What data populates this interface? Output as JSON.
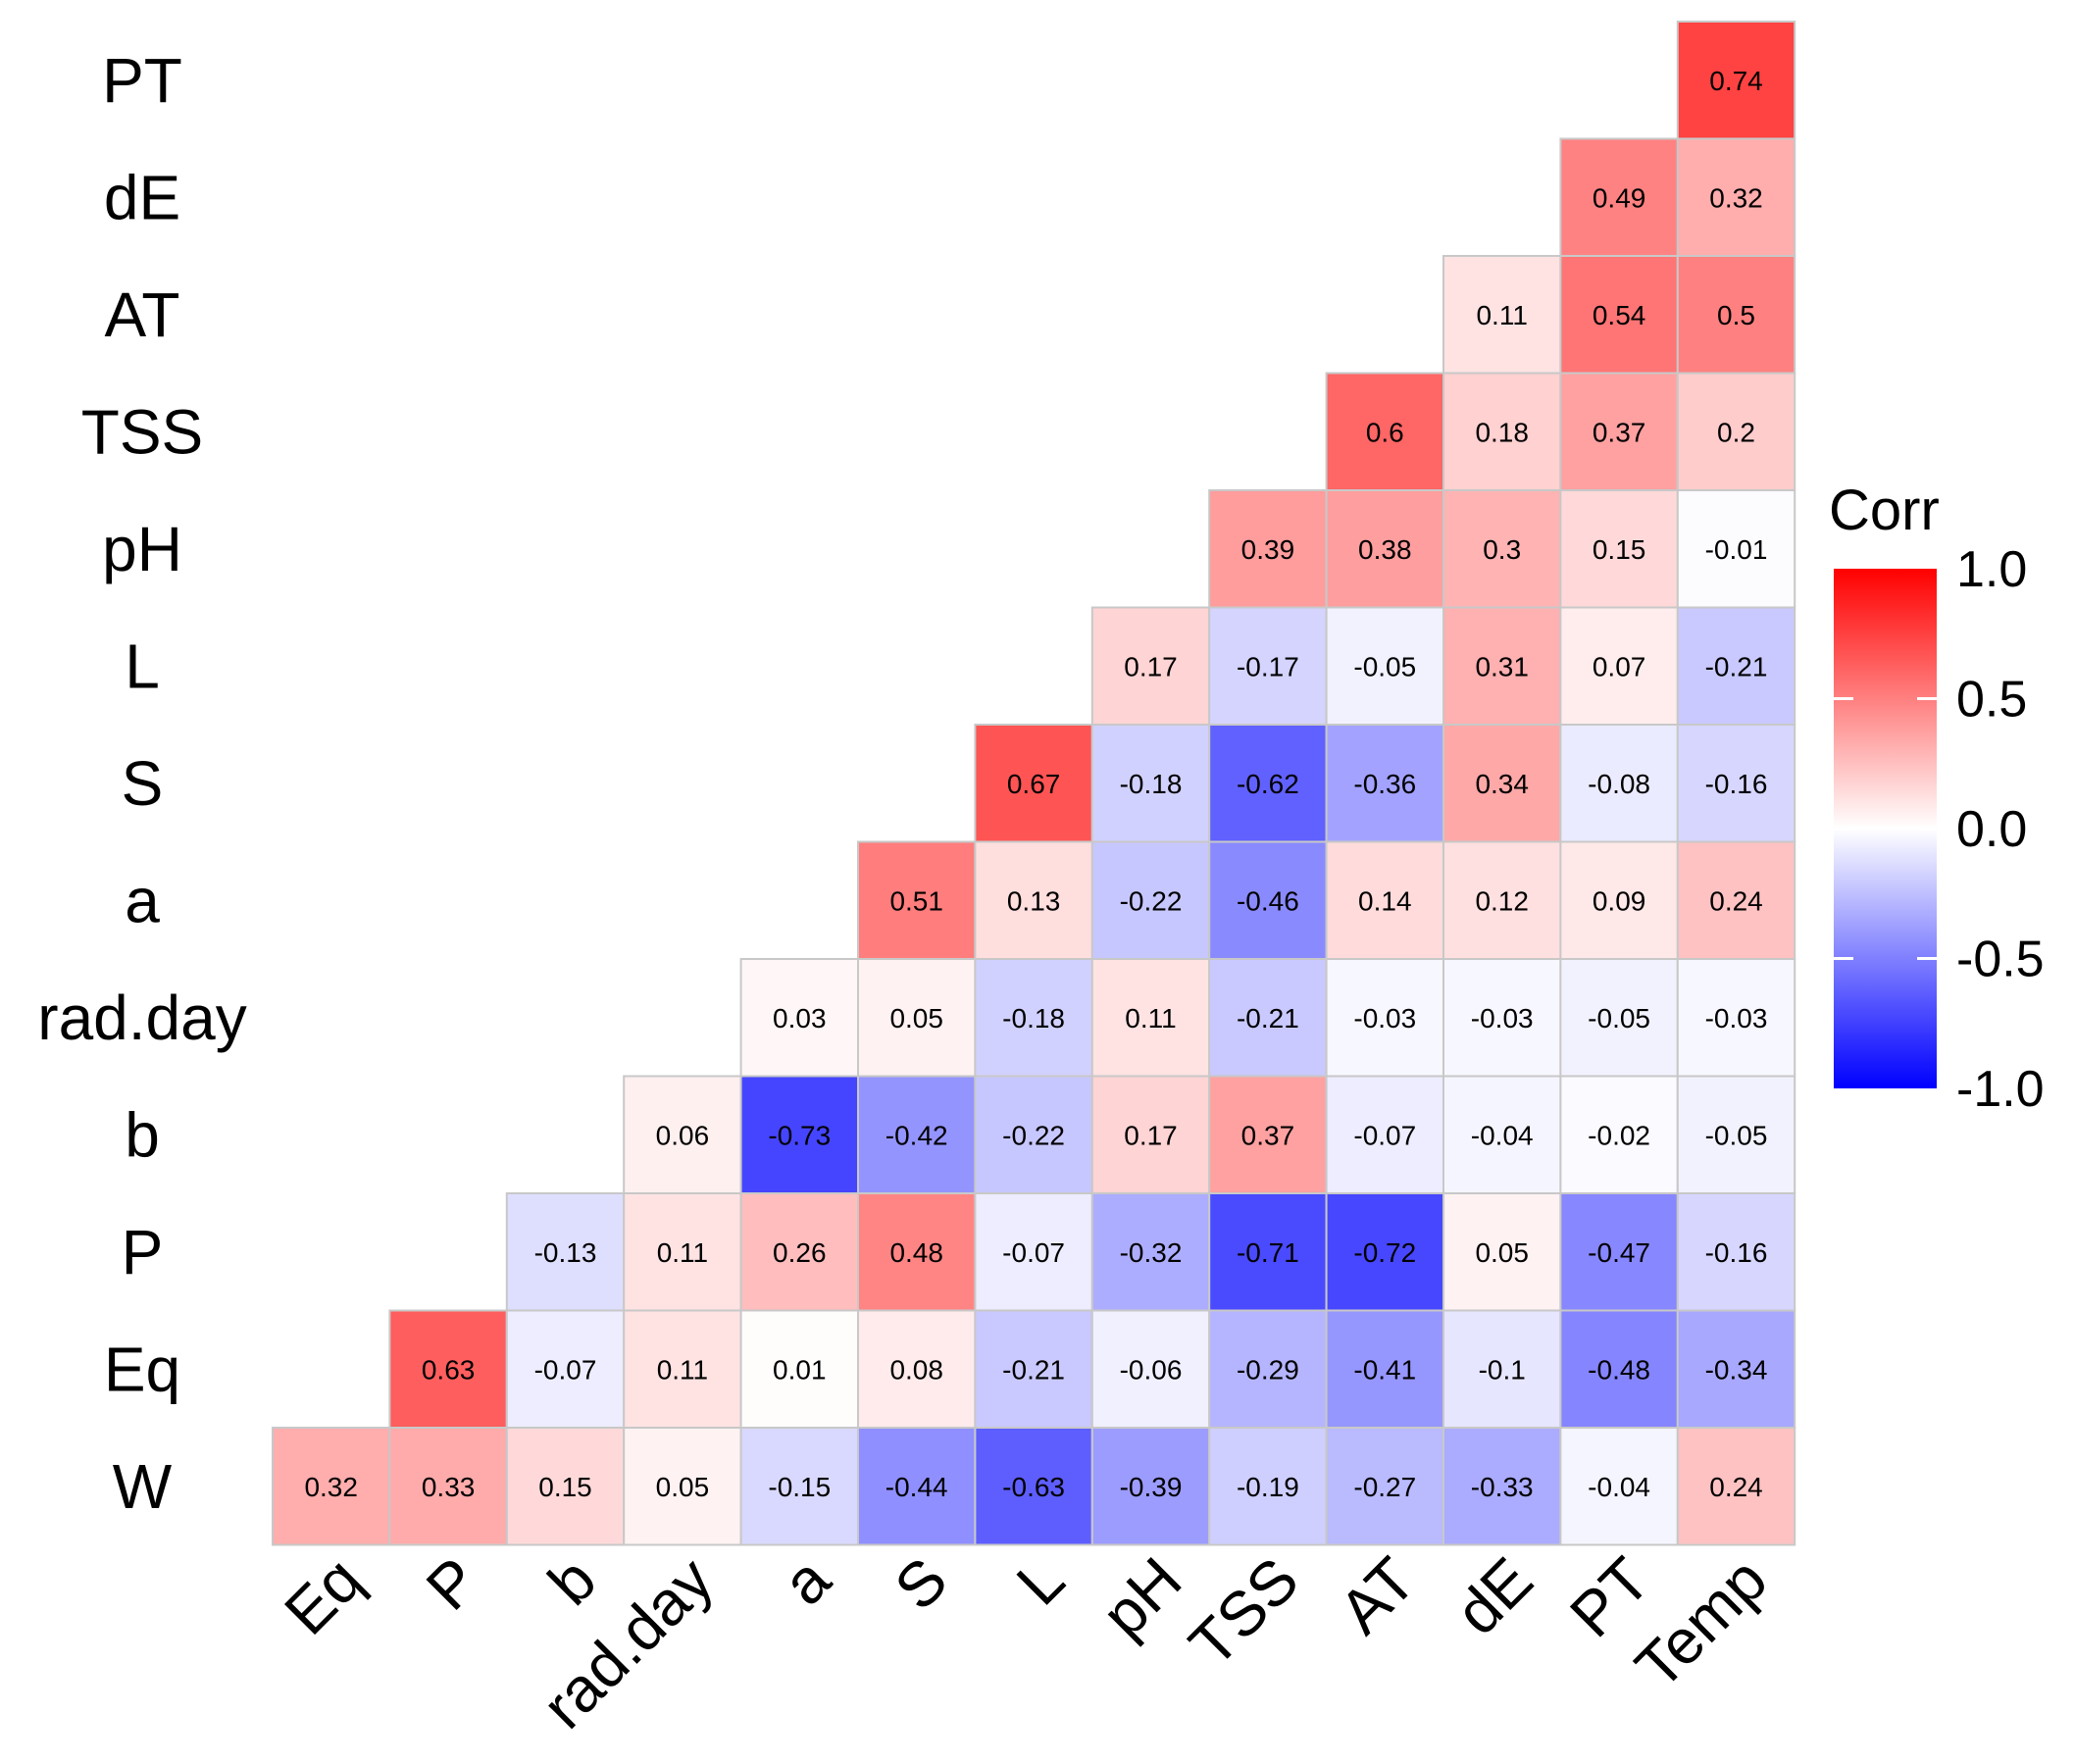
{
  "chart_data": {
    "type": "heatmap",
    "title": "",
    "rows": [
      "PT",
      "dE",
      "AT",
      "TSS",
      "pH",
      "L",
      "S",
      "a",
      "rad.day",
      "b",
      "P",
      "Eq",
      "W"
    ],
    "columns": [
      "Eq",
      "P",
      "b",
      "rad.day",
      "a",
      "S",
      "L",
      "pH",
      "TSS",
      "AT",
      "dE",
      "PT",
      "Temp"
    ],
    "values": [
      [
        null,
        null,
        null,
        null,
        null,
        null,
        null,
        null,
        null,
        null,
        null,
        null,
        0.74
      ],
      [
        null,
        null,
        null,
        null,
        null,
        null,
        null,
        null,
        null,
        null,
        null,
        0.49,
        0.32
      ],
      [
        null,
        null,
        null,
        null,
        null,
        null,
        null,
        null,
        null,
        null,
        0.11,
        0.54,
        0.5
      ],
      [
        null,
        null,
        null,
        null,
        null,
        null,
        null,
        null,
        null,
        0.6,
        0.18,
        0.37,
        0.2
      ],
      [
        null,
        null,
        null,
        null,
        null,
        null,
        null,
        null,
        0.39,
        0.38,
        0.3,
        0.15,
        -0.01
      ],
      [
        null,
        null,
        null,
        null,
        null,
        null,
        null,
        0.17,
        -0.17,
        -0.05,
        0.31,
        0.07,
        -0.21
      ],
      [
        null,
        null,
        null,
        null,
        null,
        null,
        0.67,
        -0.18,
        -0.62,
        -0.36,
        0.34,
        -0.08,
        -0.16
      ],
      [
        null,
        null,
        null,
        null,
        null,
        0.51,
        0.13,
        -0.22,
        -0.46,
        0.14,
        0.12,
        0.09,
        0.24
      ],
      [
        null,
        null,
        null,
        null,
        0.03,
        0.05,
        -0.18,
        0.11,
        -0.21,
        -0.03,
        -0.03,
        -0.05,
        -0.03
      ],
      [
        null,
        null,
        null,
        0.06,
        -0.73,
        -0.42,
        -0.22,
        0.17,
        0.37,
        -0.07,
        -0.04,
        -0.02,
        -0.05
      ],
      [
        null,
        null,
        -0.13,
        0.11,
        0.26,
        0.48,
        -0.07,
        -0.32,
        -0.71,
        -0.72,
        0.05,
        -0.47,
        -0.16
      ],
      [
        null,
        0.63,
        -0.07,
        0.11,
        0.01,
        0.08,
        -0.21,
        -0.06,
        -0.29,
        -0.41,
        -0.1,
        -0.48,
        -0.34
      ],
      [
        0.32,
        0.33,
        0.15,
        0.05,
        -0.15,
        -0.44,
        -0.63,
        -0.39,
        -0.19,
        -0.27,
        -0.33,
        -0.04,
        0.24
      ]
    ],
    "legend": {
      "title": "Corr",
      "ticks": [
        1.0,
        0.5,
        0.0,
        -0.5,
        -1.0
      ],
      "tick_labels": [
        "1.0",
        "0.5",
        "0.0",
        "-0.5",
        "-1.0"
      ],
      "range": [
        -1,
        1
      ],
      "placement": "right"
    },
    "colors": {
      "low": "#0000FF",
      "mid": "#FFFFFF",
      "high": "#FF0000",
      "cell_border": "#c8c8c8"
    }
  }
}
